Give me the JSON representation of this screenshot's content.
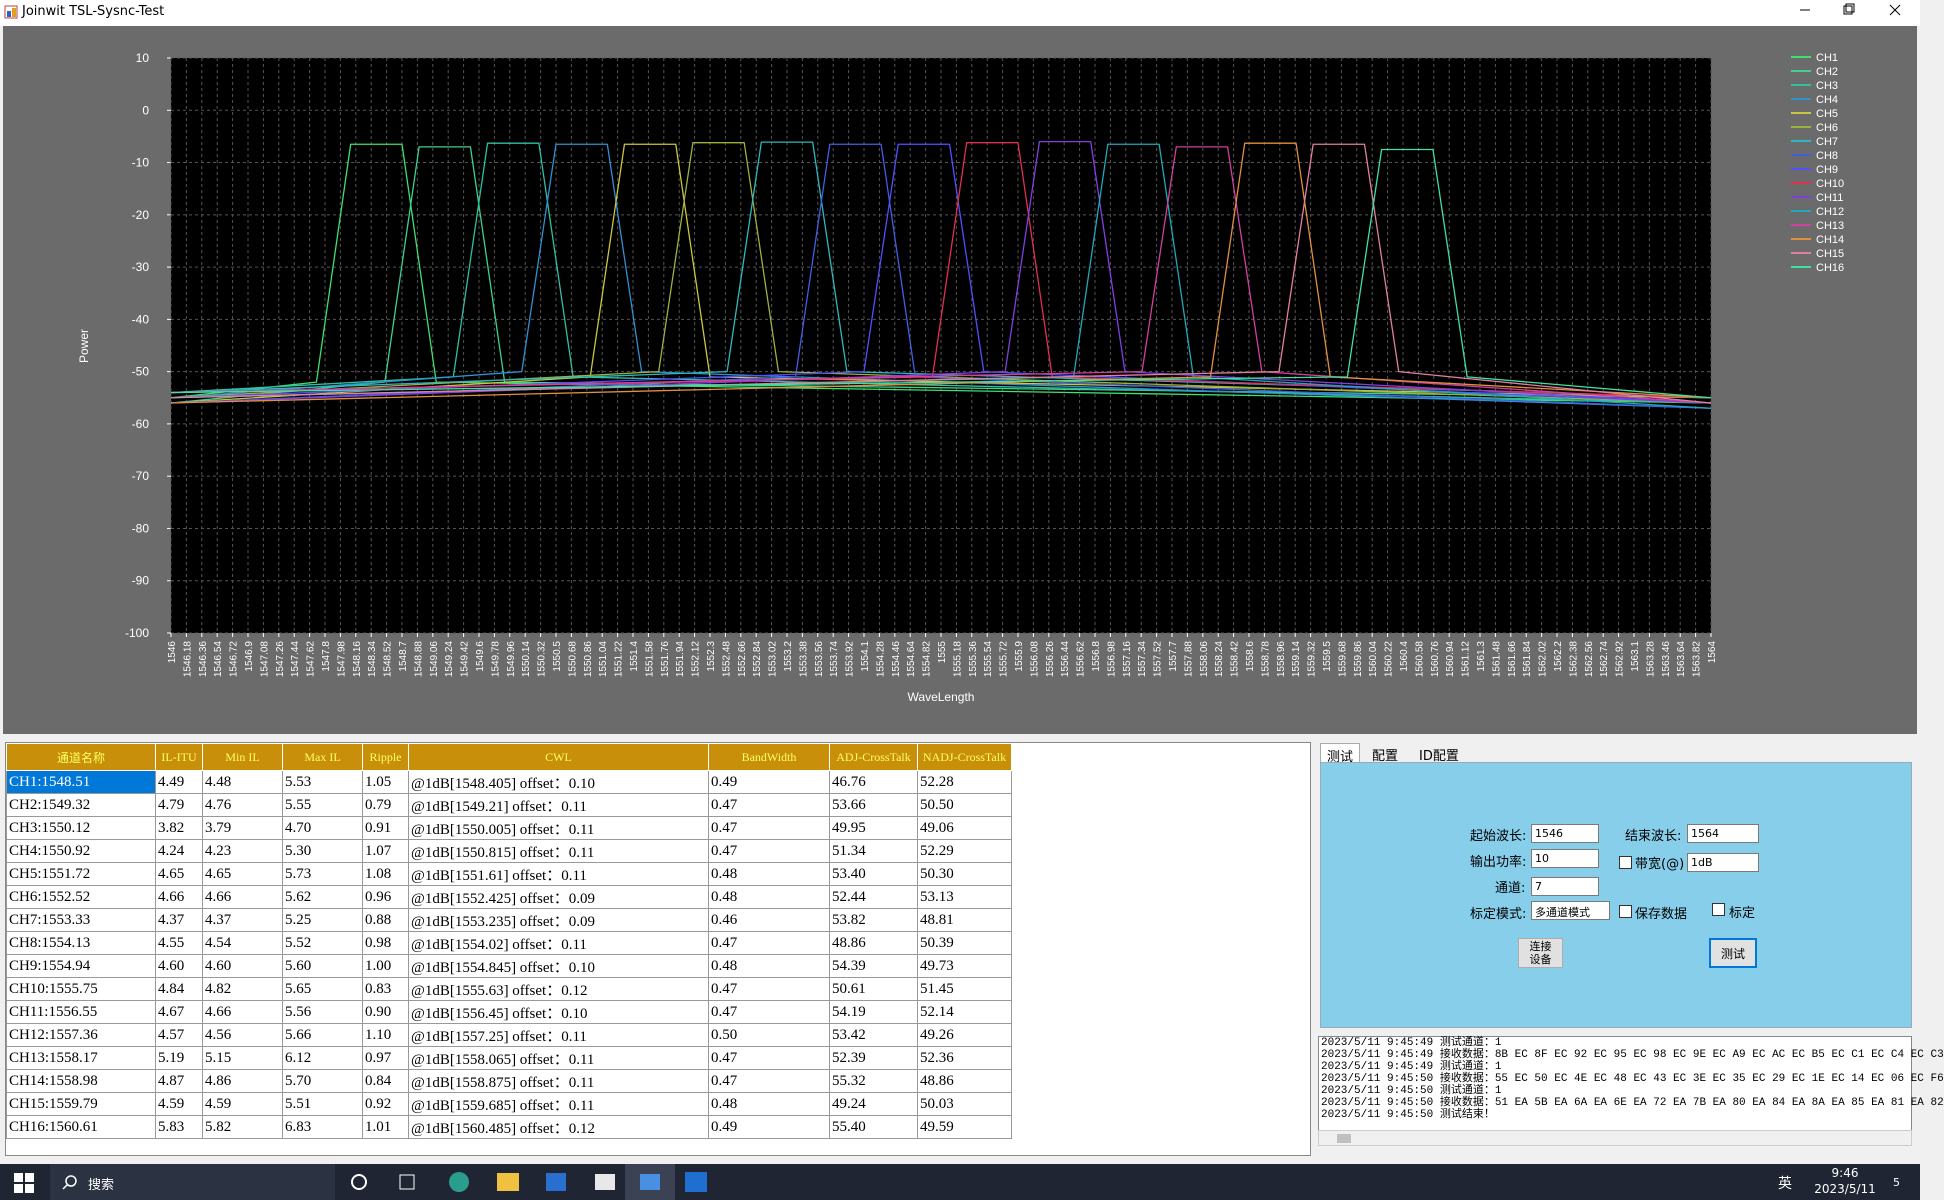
{
  "window": {
    "title": "Joinwit TSL-Sysnc-Test"
  },
  "chart_data": {
    "type": "line",
    "xlabel": "WaveLength",
    "ylabel": "Power",
    "grid": true,
    "legend": "right",
    "xlim": [
      1546,
      1564
    ],
    "ylim": [
      -100,
      10
    ],
    "yticks": [
      10,
      0,
      -10,
      -20,
      -30,
      -40,
      -50,
      -60,
      -70,
      -80,
      -90,
      -100
    ],
    "xticks": [
      1546,
      1546.18,
      1546.36,
      1546.54,
      1546.72,
      1546.9,
      1547.08,
      1547.26,
      1547.44,
      1547.62,
      1547.8,
      1547.98,
      1548.16,
      1548.34,
      1548.52,
      1548.7,
      1548.88,
      1549.06,
      1549.24,
      1549.42,
      1549.6,
      1549.78,
      1549.96,
      1550.14,
      1550.32,
      1550.5,
      1550.68,
      1550.86,
      1551.04,
      1551.22,
      1551.4,
      1551.58,
      1551.76,
      1551.94,
      1552.12,
      1552.3,
      1552.48,
      1552.66,
      1552.84,
      1553.02,
      1553.2,
      1553.38,
      1553.56,
      1553.74,
      1553.92,
      1554.1,
      1554.28,
      1554.46,
      1554.64,
      1554.82,
      1555,
      1555.18,
      1555.36,
      1555.54,
      1555.72,
      1555.9,
      1556.08,
      1556.26,
      1556.44,
      1556.62,
      1556.8,
      1556.98,
      1557.16,
      1557.34,
      1557.52,
      1557.7,
      1557.88,
      1558.06,
      1558.24,
      1558.42,
      1558.6,
      1558.78,
      1558.96,
      1559.14,
      1559.32,
      1559.5,
      1559.68,
      1559.86,
      1560.04,
      1560.22,
      1560.4,
      1560.58,
      1560.76,
      1560.94,
      1561.12,
      1561.3,
      1561.48,
      1561.66,
      1561.84,
      1562.02,
      1562.2,
      1562.38,
      1562.56,
      1562.74,
      1562.92,
      1563.1,
      1563.28,
      1563.46,
      1563.64,
      1563.82,
      1564
    ],
    "series": [
      {
        "name": "CH1",
        "color": "#40e070",
        "x": [
          1546,
          1547.7,
          1548.1,
          1548.7,
          1549.1,
          1564
        ],
        "values": [
          -55,
          -52,
          -6.5,
          -6.5,
          -52,
          -56
        ]
      },
      {
        "name": "CH2",
        "color": "#40d090",
        "x": [
          1546,
          1548.5,
          1548.9,
          1549.5,
          1549.9,
          1564
        ],
        "values": [
          -56,
          -52,
          -7,
          -7,
          -52,
          -55
        ]
      },
      {
        "name": "CH3",
        "color": "#30c0a0",
        "x": [
          1546,
          1549.3,
          1549.7,
          1550.3,
          1550.7,
          1564
        ],
        "values": [
          -54,
          -51,
          -6.3,
          -6.3,
          -51,
          -56
        ]
      },
      {
        "name": "CH4",
        "color": "#3090d0",
        "x": [
          1546,
          1550.1,
          1550.5,
          1551.1,
          1551.5,
          1564
        ],
        "values": [
          -55,
          -50,
          -6.5,
          -6.5,
          -50,
          -57
        ]
      },
      {
        "name": "CH5",
        "color": "#c8c840",
        "x": [
          1546,
          1550.9,
          1551.3,
          1551.9,
          1552.3,
          1564
        ],
        "values": [
          -56,
          -51,
          -6.5,
          -6.5,
          -51,
          -55
        ]
      },
      {
        "name": "CH6",
        "color": "#a0b040",
        "x": [
          1546,
          1551.7,
          1552.1,
          1552.7,
          1553.1,
          1564
        ],
        "values": [
          -55,
          -50,
          -6.2,
          -6.2,
          -50,
          -56
        ]
      },
      {
        "name": "CH7",
        "color": "#30b8c0",
        "x": [
          1546,
          1552.5,
          1552.9,
          1553.5,
          1553.9,
          1564
        ],
        "values": [
          -54,
          -50,
          -6.1,
          -6.1,
          -50,
          -55
        ]
      },
      {
        "name": "CH8",
        "color": "#4060e0",
        "x": [
          1546,
          1553.3,
          1553.7,
          1554.3,
          1554.7,
          1564
        ],
        "values": [
          -56,
          -51,
          -6.5,
          -6.5,
          -51,
          -57
        ]
      },
      {
        "name": "CH9",
        "color": "#5050ff",
        "x": [
          1546,
          1554.1,
          1554.5,
          1555.1,
          1555.5,
          1564
        ],
        "values": [
          -55,
          -50,
          -6.5,
          -6.5,
          -50,
          -56
        ]
      },
      {
        "name": "CH10",
        "color": "#e03050",
        "x": [
          1546,
          1554.9,
          1555.3,
          1555.9,
          1556.3,
          1564
        ],
        "values": [
          -54,
          -51,
          -6.2,
          -6.2,
          -51,
          -55
        ]
      },
      {
        "name": "CH11",
        "color": "#8040e0",
        "x": [
          1546,
          1555.75,
          1556.15,
          1556.75,
          1557.15,
          1564
        ],
        "values": [
          -56,
          -50,
          -6,
          -6,
          -50,
          -56
        ]
      },
      {
        "name": "CH12",
        "color": "#20a8b8",
        "x": [
          1546,
          1556.55,
          1556.95,
          1557.55,
          1557.95,
          1564
        ],
        "values": [
          -55,
          -51,
          -6.5,
          -6.5,
          -51,
          -57
        ]
      },
      {
        "name": "CH13",
        "color": "#d040a0",
        "x": [
          1546,
          1557.35,
          1557.75,
          1558.35,
          1558.75,
          1564
        ],
        "values": [
          -54,
          -50,
          -7,
          -7,
          -50,
          -56
        ]
      },
      {
        "name": "CH14",
        "color": "#e09040",
        "x": [
          1546,
          1558.15,
          1558.55,
          1559.15,
          1559.55,
          1564
        ],
        "values": [
          -56,
          -51,
          -6.3,
          -6.3,
          -51,
          -55
        ]
      },
      {
        "name": "CH15",
        "color": "#e080a0",
        "x": [
          1546,
          1558.95,
          1559.35,
          1559.95,
          1560.35,
          1564
        ],
        "values": [
          -55,
          -50,
          -6.5,
          -6.5,
          -50,
          -56
        ]
      },
      {
        "name": "CH16",
        "color": "#40e0a0",
        "x": [
          1546,
          1559.75,
          1560.15,
          1560.75,
          1561.15,
          1564
        ],
        "values": [
          -54,
          -51,
          -7.5,
          -7.5,
          -51,
          -55
        ]
      }
    ]
  },
  "table": {
    "headers": [
      "通道名称",
      "IL-ITU",
      "Min IL",
      "Max IL",
      "Ripple",
      "CWL",
      "BandWidth",
      "ADJ-CrossTalk",
      "NADJ-CrossTalk"
    ],
    "rows": [
      [
        "CH1:1548.51",
        "4.49",
        "4.48",
        "5.53",
        "1.05",
        "@1dB[1548.405] offset：0.10",
        "0.49",
        "46.76",
        "52.28"
      ],
      [
        "CH2:1549.32",
        "4.79",
        "4.76",
        "5.55",
        "0.79",
        "@1dB[1549.21] offset：0.11",
        "0.47",
        "53.66",
        "50.50"
      ],
      [
        "CH3:1550.12",
        "3.82",
        "3.79",
        "4.70",
        "0.91",
        "@1dB[1550.005] offset：0.11",
        "0.47",
        "49.95",
        "49.06"
      ],
      [
        "CH4:1550.92",
        "4.24",
        "4.23",
        "5.30",
        "1.07",
        "@1dB[1550.815] offset：0.11",
        "0.47",
        "51.34",
        "52.29"
      ],
      [
        "CH5:1551.72",
        "4.65",
        "4.65",
        "5.73",
        "1.08",
        "@1dB[1551.61] offset：0.11",
        "0.48",
        "53.40",
        "50.30"
      ],
      [
        "CH6:1552.52",
        "4.66",
        "4.66",
        "5.62",
        "0.96",
        "@1dB[1552.425] offset：0.09",
        "0.48",
        "52.44",
        "53.13"
      ],
      [
        "CH7:1553.33",
        "4.37",
        "4.37",
        "5.25",
        "0.88",
        "@1dB[1553.235] offset：0.09",
        "0.46",
        "53.82",
        "48.81"
      ],
      [
        "CH8:1554.13",
        "4.55",
        "4.54",
        "5.52",
        "0.98",
        "@1dB[1554.02] offset：0.11",
        "0.47",
        "48.86",
        "50.39"
      ],
      [
        "CH9:1554.94",
        "4.60",
        "4.60",
        "5.60",
        "1.00",
        "@1dB[1554.845] offset：0.10",
        "0.48",
        "54.39",
        "49.73"
      ],
      [
        "CH10:1555.75",
        "4.84",
        "4.82",
        "5.65",
        "0.83",
        "@1dB[1555.63] offset：0.12",
        "0.47",
        "50.61",
        "51.45"
      ],
      [
        "CH11:1556.55",
        "4.67",
        "4.66",
        "5.56",
        "0.90",
        "@1dB[1556.45] offset：0.10",
        "0.47",
        "54.19",
        "52.14"
      ],
      [
        "CH12:1557.36",
        "4.57",
        "4.56",
        "5.66",
        "1.10",
        "@1dB[1557.25] offset：0.11",
        "0.50",
        "53.42",
        "49.26"
      ],
      [
        "CH13:1558.17",
        "5.19",
        "5.15",
        "6.12",
        "0.97",
        "@1dB[1558.065] offset：0.11",
        "0.47",
        "52.39",
        "52.36"
      ],
      [
        "CH14:1558.98",
        "4.87",
        "4.86",
        "5.70",
        "0.84",
        "@1dB[1558.875] offset：0.11",
        "0.47",
        "55.32",
        "48.86"
      ],
      [
        "CH15:1559.79",
        "4.59",
        "4.59",
        "5.51",
        "0.92",
        "@1dB[1559.685] offset：0.11",
        "0.48",
        "49.24",
        "50.03"
      ],
      [
        "CH16:1560.61",
        "5.83",
        "5.82",
        "6.83",
        "1.01",
        "@1dB[1560.485] offset：0.12",
        "0.49",
        "55.40",
        "49.59"
      ]
    ]
  },
  "panel": {
    "tabs": [
      "测试",
      "配置",
      "ID配置"
    ],
    "start_label": "起始波长:",
    "start_value": "1546",
    "end_label": "结束波长:",
    "end_value": "1564",
    "power_label": "输出功率:",
    "power_value": "10",
    "bandwidth_label": "带宽(@)",
    "bandwidth_value": "1dB",
    "channel_label": "通道:",
    "channel_value": "7",
    "mode_label": "标定模式:",
    "mode_value": "多通道模式",
    "save_label": "保存数据",
    "calibrate_label": "标定",
    "connect_line1": "连接",
    "connect_line2": "设备",
    "test_button": "测试"
  },
  "log": [
    "2023/5/11 9:45:49 测试通道：1",
    "2023/5/11 9:45:49 接收数据：8B EC 8F EC 92 EC 95 EC 98 EC 9E EC A9 EC AC EC B5 EC C1 EC C4 EC C3",
    "2023/5/11 9:45:49 测试通道：1",
    "2023/5/11 9:45:50 接收数据：55 EC 50 EC 4E EC 48 EC 43 EC 3E EC 35 EC 29 EC 1E EC 14 EC 06 EC F6",
    "2023/5/11 9:45:50 测试通道：1",
    "2023/5/11 9:45:50 接收数据：51 EA 5B EA 6A EA 6E EA 72 EA 7B EA 80 EA 84 EA 8A EA 85 EA 81 EA 82",
    "2023/5/11 9:45:50 测试结束！"
  ],
  "taskbar": {
    "search": "搜索",
    "ime": "英",
    "time": "9:46",
    "date": "2023/5/11",
    "notifications": "5"
  }
}
